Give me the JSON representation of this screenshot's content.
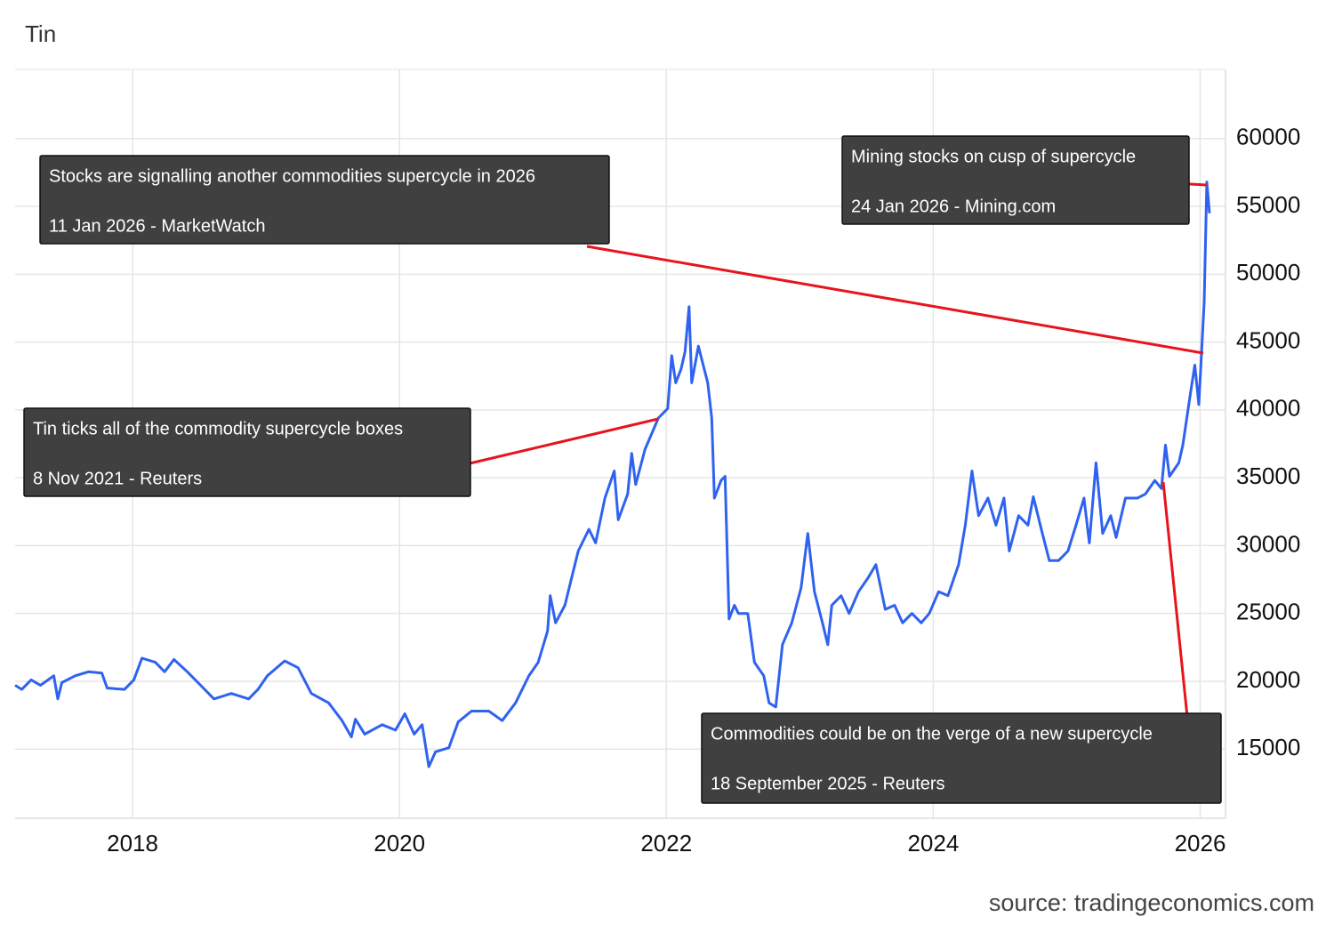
{
  "chart_data": {
    "type": "line",
    "title": "Tin",
    "source": "source: tradingeconomics.com",
    "x": [
      2017.12,
      2017.17,
      2017.24,
      2017.31,
      2017.41,
      2017.44,
      2017.47,
      2017.57,
      2017.67,
      2017.77,
      2017.81,
      2017.94,
      2018.01,
      2018.07,
      2018.17,
      2018.24,
      2018.31,
      2018.41,
      2018.51,
      2018.61,
      2018.74,
      2018.87,
      2018.94,
      2019.01,
      2019.14,
      2019.24,
      2019.34,
      2019.47,
      2019.57,
      2019.64,
      2019.67,
      2019.74,
      2019.87,
      2019.97,
      2020.04,
      2020.11,
      2020.17,
      2020.22,
      2020.27,
      2020.37,
      2020.44,
      2020.54,
      2020.67,
      2020.77,
      2020.87,
      2020.97,
      2021.04,
      2021.11,
      2021.13,
      2021.17,
      2021.24,
      2021.34,
      2021.42,
      2021.47,
      2021.54,
      2021.61,
      2021.64,
      2021.71,
      2021.74,
      2021.77,
      2021.84,
      2021.94,
      2022.01,
      2022.04,
      2022.07,
      2022.11,
      2022.14,
      2022.17,
      2022.19,
      2022.24,
      2022.31,
      2022.34,
      2022.36,
      2022.41,
      2022.44,
      2022.47,
      2022.51,
      2022.54,
      2022.61,
      2022.66,
      2022.73,
      2022.77,
      2022.82,
      2022.87,
      2022.94,
      2023.01,
      2023.06,
      2023.11,
      2023.17,
      2023.21,
      2023.24,
      2023.31,
      2023.37,
      2023.44,
      2023.51,
      2023.57,
      2023.64,
      2023.71,
      2023.77,
      2023.84,
      2023.91,
      2023.97,
      2024.04,
      2024.11,
      2024.19,
      2024.24,
      2024.29,
      2024.34,
      2024.41,
      2024.47,
      2024.53,
      2024.57,
      2024.64,
      2024.71,
      2024.75,
      2024.81,
      2024.87,
      2024.94,
      2025.01,
      2025.07,
      2025.13,
      2025.17,
      2025.22,
      2025.27,
      2025.33,
      2025.37,
      2025.44,
      2025.53,
      2025.59,
      2025.66,
      2025.71,
      2025.74,
      2025.77,
      2025.84,
      2025.87,
      2025.93,
      2025.96,
      2025.99,
      2026.03,
      2026.05,
      2026.07
    ],
    "series": [
      {
        "color": "#2f62f0",
        "values": [
          19700,
          19400,
          20100,
          19700,
          20400,
          18700,
          19900,
          20400,
          20700,
          20600,
          19500,
          19400,
          20100,
          21700,
          21400,
          20700,
          21600,
          20700,
          19700,
          18700,
          19100,
          18700,
          19400,
          20400,
          21500,
          21000,
          19100,
          18400,
          17100,
          15900,
          17200,
          16100,
          16800,
          16400,
          17600,
          16100,
          16800,
          13700,
          14800,
          15100,
          17000,
          17800,
          17800,
          17100,
          18400,
          20400,
          21400,
          23700,
          26300,
          24300,
          25600,
          29600,
          31200,
          30200,
          33500,
          35500,
          31900,
          33800,
          36800,
          34500,
          37100,
          39400,
          40100,
          44000,
          42000,
          43000,
          44300,
          47600,
          42000,
          44700,
          42000,
          39400,
          33500,
          34800,
          35100,
          24600,
          25600,
          25000,
          25000,
          21400,
          20400,
          18400,
          18100,
          22700,
          24300,
          26900,
          30900,
          26600,
          24300,
          22700,
          25600,
          26300,
          25000,
          26600,
          27600,
          28600,
          25300,
          25600,
          24300,
          25000,
          24300,
          25000,
          26600,
          26300,
          28600,
          31500,
          35500,
          32200,
          33500,
          31500,
          33500,
          29600,
          32200,
          31500,
          33600,
          31200,
          28900,
          28900,
          29600,
          31500,
          33500,
          30200,
          36100,
          30900,
          32200,
          30600,
          33500,
          33500,
          33800,
          34800,
          34200,
          37400,
          35100,
          36100,
          37400,
          41400,
          43300,
          40400,
          47900,
          56800,
          54500
        ]
      }
    ],
    "xlim": [
      2017.12,
      2026.19
    ],
    "xticks": [
      2018,
      2020,
      2022,
      2024,
      2026
    ],
    "ylim": [
      9900,
      65100
    ],
    "yticks": [
      15000,
      20000,
      25000,
      30000,
      35000,
      40000,
      45000,
      50000,
      55000,
      60000
    ],
    "grid": true,
    "annotations": [
      {
        "text": "Stocks are signalling another commodities supercycle in 2026",
        "source": "11 Jan 2026 - MarketWatch"
      },
      {
        "text": "Mining stocks on cusp of supercycle",
        "source": "24 Jan 2026 - Mining.com"
      },
      {
        "text": "Tin ticks all of the commodity supercycle boxes",
        "source": "8 Nov 2021 - Reuters"
      },
      {
        "text": "Commodities could be on the verge of a new supercycle",
        "source": "18 September 2025 - Reuters"
      }
    ]
  }
}
